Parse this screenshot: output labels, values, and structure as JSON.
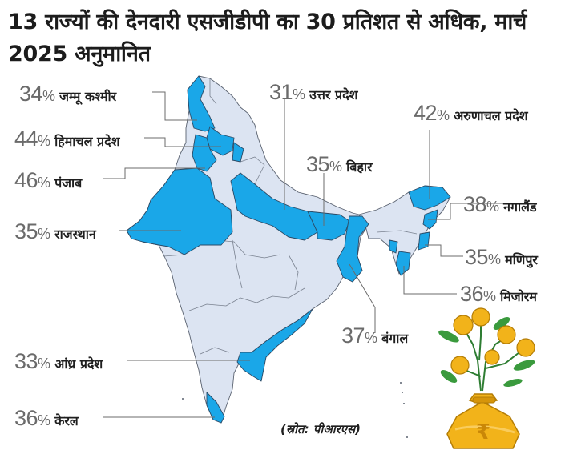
{
  "title": {
    "line1": "13 राज्यों की देनदारी एसजीडीपी का 30 प्रतिशत से अधिक, मार्च",
    "line2": "2025 अनुमानित"
  },
  "percent_sign": "%",
  "states": [
    {
      "id": "jk",
      "value": "34",
      "name": "जम्मू कश्मीर"
    },
    {
      "id": "hp",
      "value": "44",
      "name": "हिमाचल प्रदेश"
    },
    {
      "id": "pb",
      "value": "46",
      "name": "पंजाब"
    },
    {
      "id": "rj",
      "value": "35",
      "name": "राजस्थान"
    },
    {
      "id": "up",
      "value": "31",
      "name": "उत्तर प्रदेश"
    },
    {
      "id": "br",
      "value": "35",
      "name": "बिहार"
    },
    {
      "id": "ar",
      "value": "42",
      "name": "अरुणाचल प्रदेश"
    },
    {
      "id": "nl",
      "value": "38",
      "name": "नगालैंड"
    },
    {
      "id": "mn",
      "value": "35",
      "name": "मणिपुर"
    },
    {
      "id": "mz",
      "value": "36",
      "name": "मिजोरम"
    },
    {
      "id": "wb",
      "value": "37",
      "name": "बंगाल"
    },
    {
      "id": "ap",
      "value": "33",
      "name": "आंध्र प्रदेश"
    },
    {
      "id": "kl",
      "value": "36",
      "name": "केरल"
    }
  ],
  "source": "(स्रोत: पीआरएस)",
  "icons": {
    "rupee_symbol": "₹",
    "illustration": "money-bag-coin-plant"
  },
  "colors": {
    "highlight": "#1aa7e8",
    "base": "#dce4f2",
    "border": "#5a6270",
    "leader": "#6b6b6b",
    "gold": "#f2b31a"
  }
}
